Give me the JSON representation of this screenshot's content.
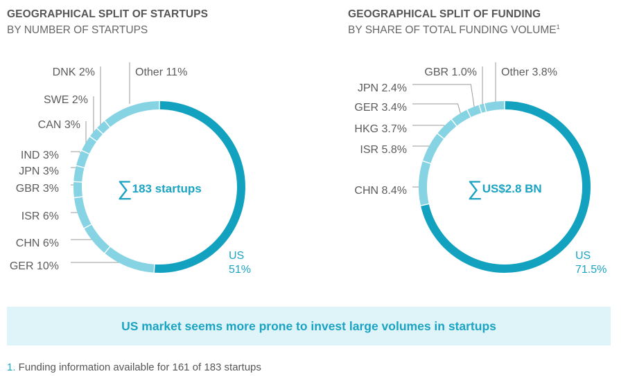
{
  "colors": {
    "major": "#12a2c0",
    "minor": "#86d3e4",
    "leader": "#9a9a9a",
    "accent": "#1aa3c2",
    "label": "#5b5b5b"
  },
  "chart_data": [
    {
      "type": "pie",
      "title": "GEOGRAPHICAL SPLIT OF STARTUPS",
      "subtitle": "BY NUMBER OF STARTUPS",
      "center_label": "183 startups",
      "center_symbol": "∑",
      "slices": [
        {
          "name": "US",
          "value": 51,
          "label": "51%"
        },
        {
          "name": "GER",
          "value": 10,
          "label": "GER 10%"
        },
        {
          "name": "CHN",
          "value": 6,
          "label": "CHN 6%"
        },
        {
          "name": "ISR",
          "value": 6,
          "label": "ISR 6%"
        },
        {
          "name": "GBR",
          "value": 3,
          "label": "GBR 3%"
        },
        {
          "name": "JPN",
          "value": 3,
          "label": "JPN 3%"
        },
        {
          "name": "IND",
          "value": 3,
          "label": "IND 3%"
        },
        {
          "name": "CAN",
          "value": 3,
          "label": "CAN 3%"
        },
        {
          "name": "SWE",
          "value": 2,
          "label": "SWE 2%"
        },
        {
          "name": "DNK",
          "value": 2,
          "label": "DNK 2%"
        },
        {
          "name": "Other",
          "value": 11,
          "label": "Other 11%"
        }
      ]
    },
    {
      "type": "pie",
      "title": "GEOGRAPHICAL SPLIT OF FUNDING",
      "subtitle": "BY SHARE OF TOTAL FUNDING VOLUME",
      "subtitle_sup": "1",
      "center_label": "US$2.8 BN",
      "center_symbol": "∑",
      "slices": [
        {
          "name": "US",
          "value": 71.5,
          "label": "71.5%"
        },
        {
          "name": "CHN",
          "value": 8.4,
          "label": "CHN 8.4%"
        },
        {
          "name": "ISR",
          "value": 5.8,
          "label": "ISR 5.8%"
        },
        {
          "name": "HKG",
          "value": 3.7,
          "label": "HKG 3.7%"
        },
        {
          "name": "GER",
          "value": 3.4,
          "label": "GER 3.4%"
        },
        {
          "name": "JPN",
          "value": 2.4,
          "label": "JPN 2.4%"
        },
        {
          "name": "GBR",
          "value": 1.0,
          "label": "GBR 1.0%"
        },
        {
          "name": "Other",
          "value": 3.8,
          "label": "Other 3.8%"
        }
      ]
    }
  ],
  "banner": {
    "text": "US market seems more prone to invest large volumes in startups"
  },
  "footnote": {
    "number": "1.",
    "text": " Funding information available for 161 of 183 startups"
  }
}
